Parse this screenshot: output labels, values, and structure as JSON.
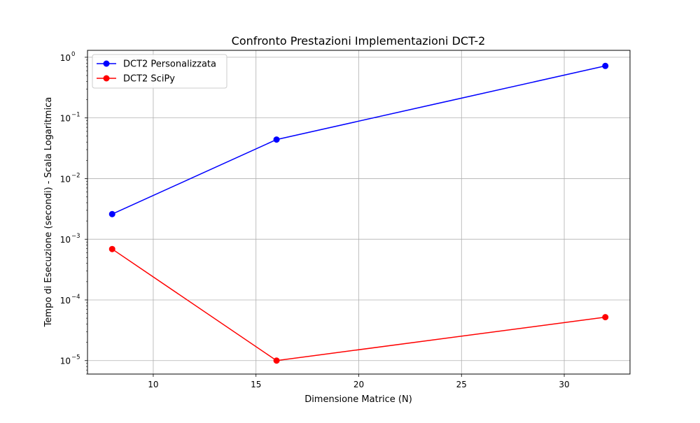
{
  "chart_data": {
    "type": "line",
    "title": "Confronto Prestazioni Implementazioni DCT-2",
    "xlabel": "Dimensione Matrice (N)",
    "ylabel": "Tempo di Esecuzione (secondi) - Scala Logaritmica",
    "x_scale": "linear",
    "y_scale": "log",
    "xlim": [
      6.8,
      33.2
    ],
    "ylim": [
      6e-06,
      1.3
    ],
    "x_ticks": [
      10,
      15,
      20,
      25,
      30
    ],
    "y_ticks": [
      {
        "value": 1e-05,
        "base": "10",
        "exp": "−5"
      },
      {
        "value": 0.0001,
        "base": "10",
        "exp": "−4"
      },
      {
        "value": 0.001,
        "base": "10",
        "exp": "−3"
      },
      {
        "value": 0.01,
        "base": "10",
        "exp": "−2"
      },
      {
        "value": 0.1,
        "base": "10",
        "exp": "−1"
      },
      {
        "value": 1,
        "base": "10",
        "exp": "0"
      }
    ],
    "grid": true,
    "legend_position": "upper-left",
    "series": [
      {
        "name": "DCT2 Personalizzata",
        "color": "#0000ff",
        "marker": "circle",
        "x": [
          8,
          16,
          32
        ],
        "y": [
          0.0026,
          0.044,
          0.72
        ]
      },
      {
        "name": "DCT2 SciPy",
        "color": "#ff0000",
        "marker": "circle",
        "x": [
          8,
          16,
          32
        ],
        "y": [
          0.00069,
          1e-05,
          5.2e-05
        ]
      }
    ]
  }
}
